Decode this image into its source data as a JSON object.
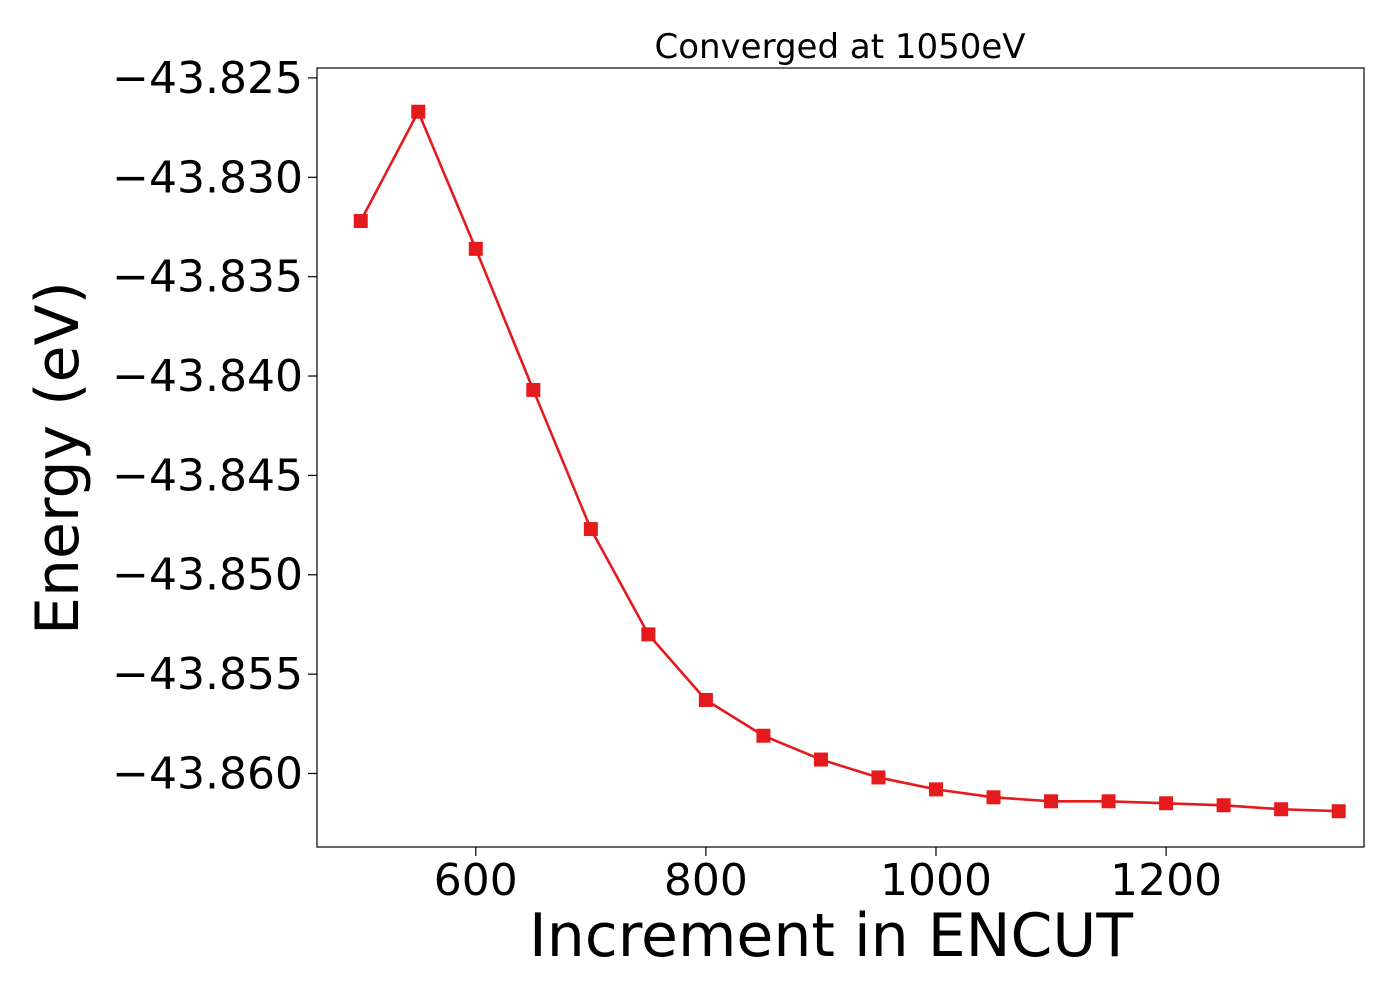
{
  "chart_data": {
    "type": "line",
    "title": "Converged at 1050eV",
    "xlabel": "Increment in ENCUT",
    "ylabel": "Energy (eV)",
    "xlim": [
      462,
      1372
    ],
    "ylim": [
      -43.8637,
      -43.8245
    ],
    "x_ticks": [
      600,
      800,
      1000,
      1200
    ],
    "x_tick_labels": [
      "600",
      "800",
      "1000",
      "1200"
    ],
    "y_ticks": [
      -43.825,
      -43.83,
      -43.835,
      -43.84,
      -43.845,
      -43.85,
      -43.855,
      -43.86
    ],
    "y_tick_labels": [
      "−43.825",
      "−43.830",
      "−43.835",
      "−43.840",
      "−43.845",
      "−43.850",
      "−43.855",
      "−43.860"
    ],
    "grid": false,
    "legend": null,
    "series": [
      {
        "color": "#e41a1c",
        "marker": "square",
        "x": [
          500,
          550,
          600,
          650,
          700,
          750,
          800,
          850,
          900,
          950,
          1000,
          1050,
          1100,
          1150,
          1200,
          1250,
          1300,
          1350
        ],
        "y": [
          -43.8322,
          -43.8267,
          -43.8336,
          -43.8407,
          -43.8477,
          -43.853,
          -43.8563,
          -43.8581,
          -43.8593,
          -43.8602,
          -43.8608,
          -43.8612,
          -43.8614,
          -43.8614,
          -43.8615,
          -43.8616,
          -43.8618,
          -43.8619
        ]
      }
    ]
  }
}
